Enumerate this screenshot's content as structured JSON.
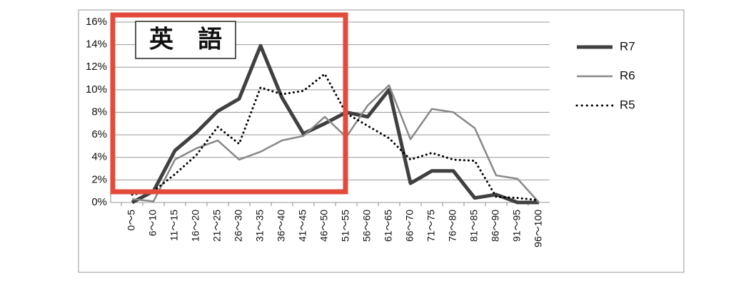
{
  "chart_data": {
    "type": "line",
    "annotation": "英　語",
    "categories": [
      "0～5",
      "6～10",
      "11～15",
      "16～20",
      "21～25",
      "26～30",
      "31～35",
      "36～40",
      "41～45",
      "46～50",
      "51～55",
      "56～60",
      "61～65",
      "66～70",
      "71～75",
      "76～80",
      "81～85",
      "86～90",
      "91～95",
      "96～100"
    ],
    "series": [
      {
        "name": "R7",
        "color": "#404040",
        "style": "solid",
        "width": 5,
        "values": [
          0,
          1.0,
          4.6,
          6.2,
          8.1,
          9.2,
          13.9,
          9.3,
          6.1,
          7.0,
          8.0,
          7.6,
          10.0,
          1.7,
          2.8,
          2.8,
          0.4,
          0.7,
          0,
          0
        ]
      },
      {
        "name": "R6",
        "color": "#888888",
        "style": "solid",
        "width": 2.5,
        "values": [
          0.3,
          0.1,
          3.8,
          4.8,
          5.5,
          3.8,
          4.5,
          5.5,
          5.9,
          7.6,
          5.8,
          8.6,
          10.4,
          5.6,
          8.3,
          8.0,
          6.6,
          2.4,
          2.1,
          0
        ]
      },
      {
        "name": "R5",
        "color": "#000000",
        "style": "dotted",
        "width": 3,
        "values": [
          0.7,
          1.0,
          2.5,
          4.2,
          6.7,
          5.2,
          10.2,
          9.6,
          9.9,
          11.4,
          7.9,
          6.8,
          5.7,
          3.8,
          4.4,
          3.8,
          3.7,
          0.5,
          0.4,
          0.2
        ]
      }
    ],
    "ylim": [
      0,
      16
    ],
    "yticks": [
      {
        "value": 0,
        "label": "0%"
      },
      {
        "value": 2,
        "label": "2%"
      },
      {
        "value": 4,
        "label": "4%"
      },
      {
        "value": 6,
        "label": "6%"
      },
      {
        "value": 8,
        "label": "8%"
      },
      {
        "value": 10,
        "label": "10%"
      },
      {
        "value": 12,
        "label": "12%"
      },
      {
        "value": 14,
        "label": "14%"
      },
      {
        "value": 16,
        "label": "16%"
      }
    ],
    "grid": true,
    "legend": "right"
  }
}
